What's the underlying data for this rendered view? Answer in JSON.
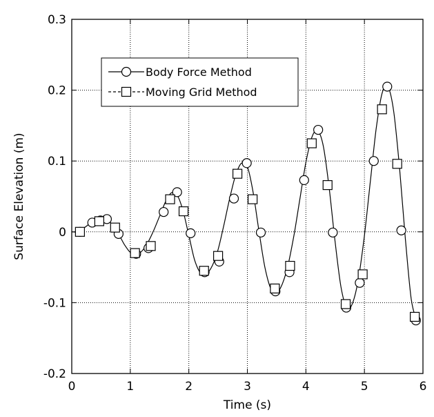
{
  "chart_data": {
    "type": "line",
    "title": "",
    "xlabel": "Time (s)",
    "ylabel": "Surface Elevation (m)",
    "xlim": [
      0,
      6
    ],
    "ylim": [
      -0.2,
      0.3
    ],
    "xticks": [
      "0",
      "1",
      "2",
      "3",
      "4",
      "5",
      "6"
    ],
    "yticks": [
      "-0.2",
      "-0.1",
      "0",
      "0.1",
      "0.2",
      "0.3"
    ],
    "grid": true,
    "legend_position": "top-left",
    "curve": {
      "x": [
        0,
        0.1,
        0.2,
        0.3,
        0.4,
        0.5,
        0.6,
        0.7,
        0.8,
        0.9,
        1.0,
        1.1,
        1.2,
        1.3,
        1.4,
        1.5,
        1.6,
        1.7,
        1.8,
        1.9,
        2.0,
        2.1,
        2.2,
        2.3,
        2.4,
        2.5,
        2.6,
        2.7,
        2.8,
        2.9,
        3.0,
        3.1,
        3.2,
        3.3,
        3.4,
        3.5,
        3.6,
        3.7,
        3.8,
        3.9,
        4.0,
        4.1,
        4.2,
        4.3,
        4.4,
        4.5,
        4.6,
        4.7,
        4.8,
        4.9,
        5.0,
        5.1,
        5.2,
        5.3,
        5.4,
        5.5,
        5.6,
        5.7,
        5.8,
        5.9
      ],
      "y": [
        0.0,
        0.0,
        0.005,
        0.011,
        0.016,
        0.018,
        0.016,
        0.01,
        -0.003,
        -0.018,
        -0.029,
        -0.032,
        -0.027,
        -0.015,
        0.002,
        0.022,
        0.042,
        0.055,
        0.052,
        0.03,
        -0.005,
        -0.04,
        -0.058,
        -0.059,
        -0.048,
        -0.025,
        0.01,
        0.048,
        0.08,
        0.097,
        0.092,
        0.055,
        0.0,
        -0.05,
        -0.08,
        -0.086,
        -0.073,
        -0.045,
        -0.003,
        0.048,
        0.098,
        0.133,
        0.143,
        0.12,
        0.06,
        -0.015,
        -0.078,
        -0.108,
        -0.1,
        -0.065,
        -0.005,
        0.07,
        0.145,
        0.195,
        0.205,
        0.17,
        0.09,
        -0.01,
        -0.095,
        -0.128
      ]
    },
    "series": [
      {
        "name": "Body Force Method",
        "marker": "circle",
        "x": [
          0.14,
          0.35,
          0.49,
          0.6,
          0.8,
          1.1,
          1.31,
          1.57,
          1.8,
          2.03,
          2.27,
          2.52,
          2.77,
          2.99,
          3.23,
          3.48,
          3.72,
          3.97,
          4.21,
          4.46,
          4.69,
          4.92,
          5.16,
          5.39,
          5.63,
          5.88
        ],
        "y": [
          0.0,
          0.013,
          0.016,
          0.018,
          -0.003,
          -0.031,
          -0.023,
          0.028,
          0.056,
          -0.002,
          -0.057,
          -0.042,
          0.047,
          0.097,
          -0.001,
          -0.084,
          -0.057,
          0.073,
          0.144,
          -0.001,
          -0.107,
          -0.072,
          0.1,
          0.205,
          0.002,
          -0.125
        ]
      },
      {
        "name": "Moving Grid Method",
        "marker": "square",
        "x": [
          0.14,
          0.47,
          0.74,
          1.08,
          1.35,
          1.68,
          1.91,
          2.26,
          2.5,
          2.83,
          3.09,
          3.47,
          3.73,
          4.1,
          4.37,
          4.68,
          4.97,
          5.3,
          5.56,
          5.86
        ],
        "y": [
          0.0,
          0.015,
          0.006,
          -0.03,
          -0.02,
          0.046,
          0.029,
          -0.055,
          -0.034,
          0.082,
          0.046,
          -0.08,
          -0.048,
          0.125,
          0.066,
          -0.102,
          -0.06,
          0.173,
          0.096,
          -0.12
        ]
      }
    ]
  }
}
